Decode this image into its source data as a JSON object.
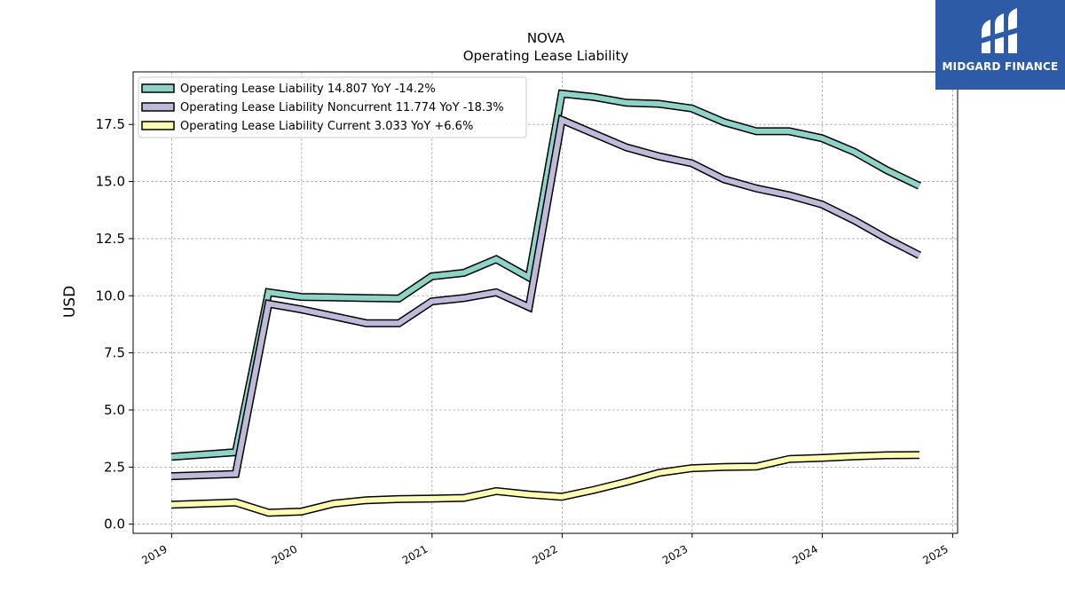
{
  "brand": {
    "name": "MIDGARD FINANCE",
    "logo_icon": "midgard-finance-logo-icon",
    "color": "#2d5ba8"
  },
  "chart_data": {
    "type": "line",
    "title": "NOVA",
    "subtitle": "Operating Lease Liability",
    "xlabel": "",
    "ylabel": "USD",
    "xlim": [
      "2018-09-15",
      "2025-01-15"
    ],
    "ylim": [
      -0.4,
      19.8
    ],
    "x_ticks": [
      "2019",
      "2020",
      "2021",
      "2022",
      "2023",
      "2024",
      "2025"
    ],
    "y_ticks": [
      "0.0",
      "2.5",
      "5.0",
      "7.5",
      "10.0",
      "12.5",
      "15.0",
      "17.5"
    ],
    "grid": true,
    "legend_position": "top-left",
    "x": [
      "2018-12-31",
      "2019-06-30",
      "2019-09-30",
      "2019-12-31",
      "2020-03-31",
      "2020-06-30",
      "2020-09-30",
      "2020-12-31",
      "2021-03-31",
      "2021-06-30",
      "2021-09-30",
      "2021-12-31",
      "2022-03-31",
      "2022-06-30",
      "2022-09-30",
      "2022-12-31",
      "2023-03-31",
      "2023-06-30",
      "2023-09-30",
      "2023-12-31",
      "2024-03-31",
      "2024-06-30",
      "2024-09-30"
    ],
    "series": [
      {
        "name": "Operating Lease Liability",
        "legend": "Operating Lease Liability  14.807 YoY -14.2%",
        "color": "#8dd3c7",
        "values": [
          2.95,
          3.15,
          10.15,
          9.95,
          9.93,
          9.9,
          9.88,
          10.85,
          11.0,
          11.6,
          10.8,
          18.85,
          18.7,
          18.45,
          18.4,
          18.2,
          17.6,
          17.2,
          17.2,
          16.9,
          16.3,
          15.5,
          14.81
        ]
      },
      {
        "name": "Operating Lease Liability Noncurrent",
        "legend": "Operating Lease Liability Noncurrent  11.774 YoY -18.3%",
        "color": "#bebada",
        "values": [
          2.1,
          2.2,
          9.65,
          9.4,
          9.1,
          8.8,
          8.8,
          9.75,
          9.9,
          10.15,
          9.5,
          17.7,
          17.1,
          16.5,
          16.1,
          15.8,
          15.1,
          14.7,
          14.4,
          14.0,
          13.3,
          12.5,
          11.77
        ]
      },
      {
        "name": "Operating Lease Liability Current",
        "legend": "Operating Lease Liability Current  3.033 YoY +6.6%",
        "color": "#ffffb3",
        "values": [
          0.85,
          0.95,
          0.5,
          0.55,
          0.9,
          1.05,
          1.1,
          1.12,
          1.15,
          1.45,
          1.3,
          1.2,
          1.5,
          1.85,
          2.25,
          2.45,
          2.5,
          2.52,
          2.85,
          2.9,
          2.97,
          3.02,
          3.03
        ]
      }
    ]
  }
}
